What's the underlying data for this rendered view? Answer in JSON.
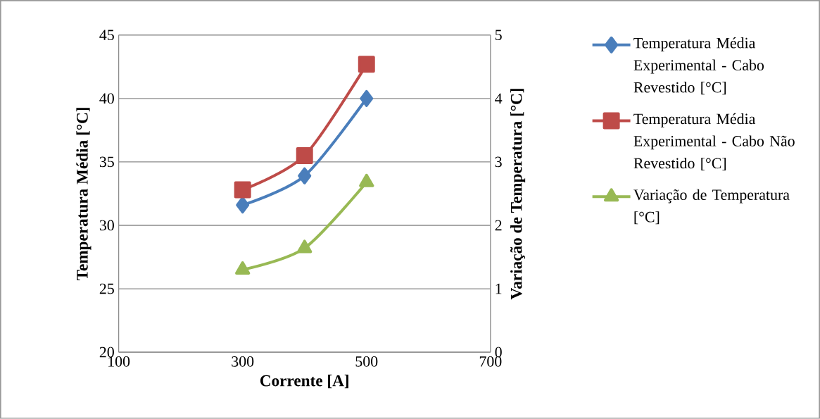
{
  "chart_data": {
    "type": "line",
    "xlabel": "Corrente [A]",
    "ylabel": "Temperatura Média [°C]",
    "y2label": "Variação de Temperatura [°C]",
    "x": [
      300,
      400,
      500
    ],
    "series": [
      {
        "name": "Temperatura Média Experimental - Cabo Revestido [°C]",
        "color": "#4a7ebb",
        "marker": "diamond",
        "values": [
          31.6,
          33.9,
          40.0
        ]
      },
      {
        "name": "Temperatura Média Experimental - Cabo Não Revestido [°C]",
        "color": "#be4b48",
        "marker": "square",
        "values": [
          32.8,
          35.5,
          42.7
        ]
      },
      {
        "name": "Variação de Temperatura [°C]",
        "color": "#98b954",
        "marker": "triangle",
        "axis": "y2",
        "values": [
          1.3,
          1.64,
          2.68
        ]
      }
    ],
    "xlim": [
      100,
      700
    ],
    "xticks": [
      100,
      300,
      500,
      700
    ],
    "ylim": [
      20,
      45
    ],
    "yticks": [
      20,
      25,
      30,
      35,
      40,
      45
    ],
    "y2lim": [
      0,
      5
    ],
    "y2ticks": [
      0,
      1,
      2,
      3,
      4,
      5
    ],
    "grid": "y",
    "legend": "right",
    "line_style": "solid"
  }
}
